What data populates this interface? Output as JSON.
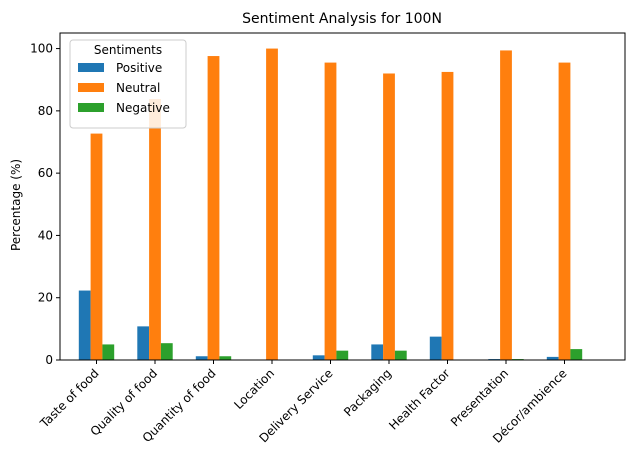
{
  "chart_data": {
    "type": "bar",
    "title": "Sentiment Analysis for 100N",
    "xlabel": "",
    "ylabel": "Percentage (%)",
    "ylim": [
      0,
      105
    ],
    "yticks": [
      0,
      20,
      40,
      60,
      80,
      100
    ],
    "grid": false,
    "legend": {
      "title": "Sentiments",
      "placement": "top-left"
    },
    "categories": [
      "Taste of food",
      "Quality of food",
      "Quantity of food",
      "Location",
      "Delivery Service",
      "Packaging",
      "Health Factor",
      "Presentation",
      "Décor/ambience"
    ],
    "series": [
      {
        "name": "Positive",
        "color": "#1f77b4",
        "values": [
          22.3,
          10.8,
          1.2,
          0,
          1.5,
          5.0,
          7.5,
          0.3,
          1.0
        ]
      },
      {
        "name": "Neutral",
        "color": "#ff7f0e",
        "values": [
          72.7,
          83.8,
          97.6,
          100,
          95.5,
          92.0,
          92.5,
          99.4,
          95.5
        ]
      },
      {
        "name": "Negative",
        "color": "#2ca02c",
        "values": [
          5.0,
          5.4,
          1.2,
          0,
          3.0,
          3.0,
          0,
          0.3,
          3.5
        ]
      }
    ]
  }
}
